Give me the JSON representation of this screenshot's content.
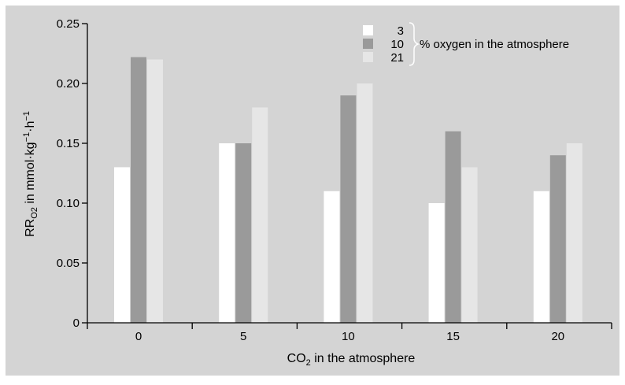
{
  "colors": {
    "background": "#ffffff",
    "panel": "#d4d4d4",
    "axis": "#000000",
    "series": [
      "#ffffff",
      "#9a9a9a",
      "#e6e6e6"
    ]
  },
  "chart_data": {
    "type": "bar",
    "categories": [
      "0",
      "5",
      "10",
      "15",
      "20"
    ],
    "series": [
      {
        "name": "3",
        "values": [
          0.13,
          0.15,
          0.11,
          0.1,
          0.11
        ]
      },
      {
        "name": "10",
        "values": [
          0.222,
          0.15,
          0.19,
          0.16,
          0.14
        ]
      },
      {
        "name": "21",
        "values": [
          0.22,
          0.18,
          0.2,
          0.13,
          0.15
        ]
      }
    ],
    "legend_group_label": "% oxygen in the atmosphere",
    "legend_position": "top-right",
    "xlabel": {
      "main": "CO",
      "sub": "2",
      "rest": " in the atmosphere"
    },
    "ylabel": {
      "p1": "RR",
      "p1_sub": "O2",
      "p2": " in mmol·kg",
      "p2_sup": "−1",
      "p3": "·h",
      "p3_sup": "−1"
    },
    "ylim": [
      0,
      0.25
    ],
    "yticks": [
      0,
      0.05,
      0.1,
      0.15,
      0.2,
      0.25
    ],
    "ytick_labels": [
      "0",
      "0.05",
      "0.10",
      "0.15",
      "0.20",
      "0.25"
    ],
    "grid": false
  }
}
